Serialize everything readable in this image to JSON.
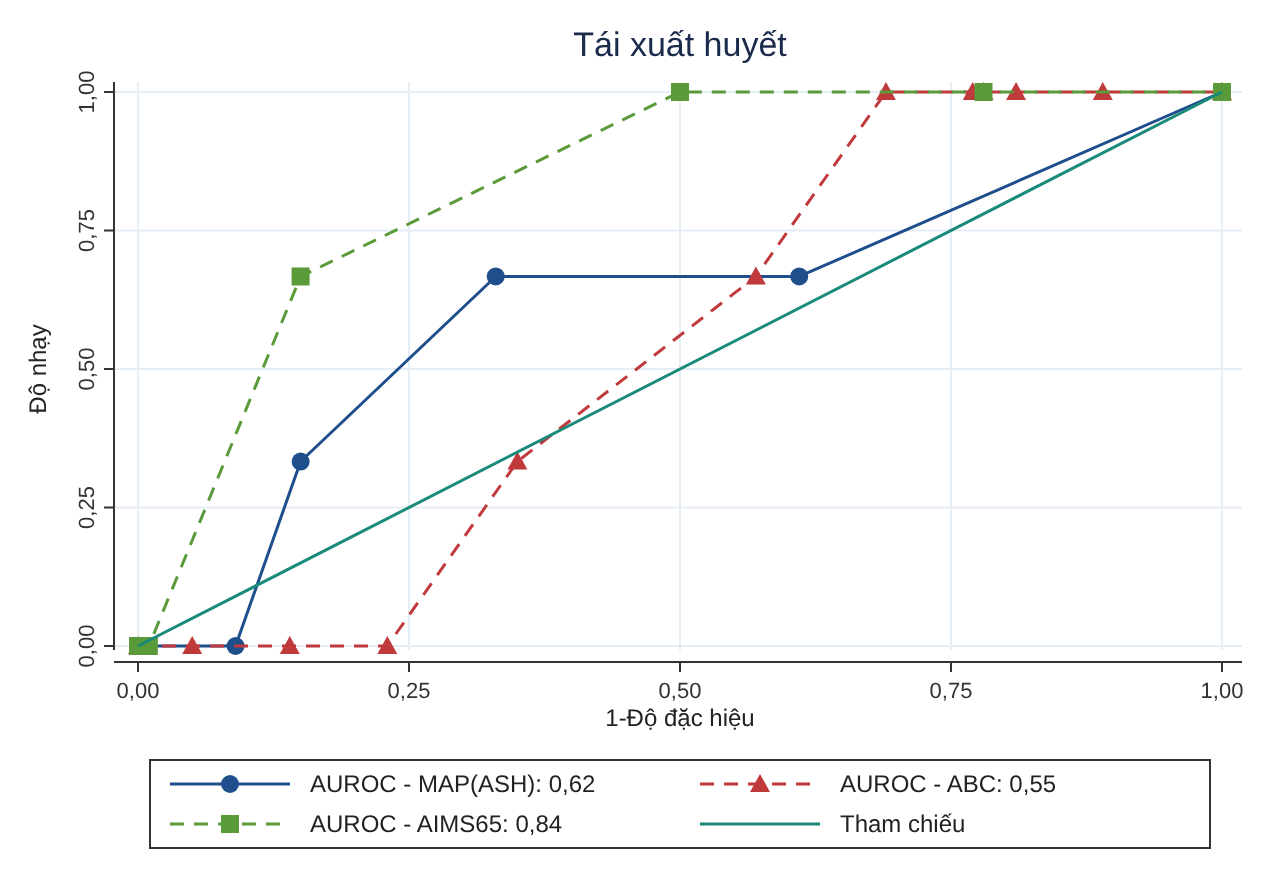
{
  "chart_data": {
    "type": "line",
    "title": "Tái xuất huyết",
    "xlabel": "1-Độ đặc hiệu",
    "ylabel": "Độ nhạy",
    "xlim": [
      0,
      1
    ],
    "ylim": [
      0,
      1
    ],
    "xticks": [
      {
        "value": 0,
        "label": "0,00"
      },
      {
        "value": 0.25,
        "label": "0,25"
      },
      {
        "value": 0.5,
        "label": "0,50"
      },
      {
        "value": 0.75,
        "label": "0,75"
      },
      {
        "value": 1,
        "label": "1,00"
      }
    ],
    "yticks": [
      {
        "value": 0,
        "label": "0,00"
      },
      {
        "value": 0.25,
        "label": "0,25"
      },
      {
        "value": 0.5,
        "label": "0,50"
      },
      {
        "value": 0.75,
        "label": "0,75"
      },
      {
        "value": 1,
        "label": "1,00"
      }
    ],
    "grid": true,
    "legend": "bottom",
    "series": [
      {
        "name": "AUROC - MAP(ASH): 0,62",
        "color": "#1f4e8c",
        "marker": "circle",
        "line_style": "solid",
        "x": [
          0,
          0.09,
          0.15,
          0.33,
          0.61,
          1
        ],
        "values": [
          0,
          0,
          0.333,
          0.667,
          0.667,
          1
        ]
      },
      {
        "name": "AUROC - ABC: 0,55",
        "color": "#c0393b",
        "marker": "triangle",
        "line_style": "dashed",
        "x": [
          0,
          0.05,
          0.14,
          0.23,
          0.35,
          0.57,
          0.69,
          0.77,
          0.78,
          0.81,
          0.89,
          1
        ],
        "values": [
          0,
          0,
          0,
          0,
          0.333,
          0.667,
          1,
          1,
          1,
          1,
          1,
          1
        ]
      },
      {
        "name": "AUROC - AIMS65: 0,84",
        "color": "#5a9a3a",
        "marker": "square",
        "line_style": "dashed",
        "x": [
          0,
          0.01,
          0.15,
          0.5,
          0.78,
          1
        ],
        "values": [
          0,
          0,
          0.667,
          1,
          1,
          1
        ]
      },
      {
        "name": "Tham chiếu",
        "color": "#1a8a7a",
        "marker": "none",
        "line_style": "solid",
        "x": [
          0,
          1
        ],
        "values": [
          0,
          1
        ]
      }
    ]
  }
}
